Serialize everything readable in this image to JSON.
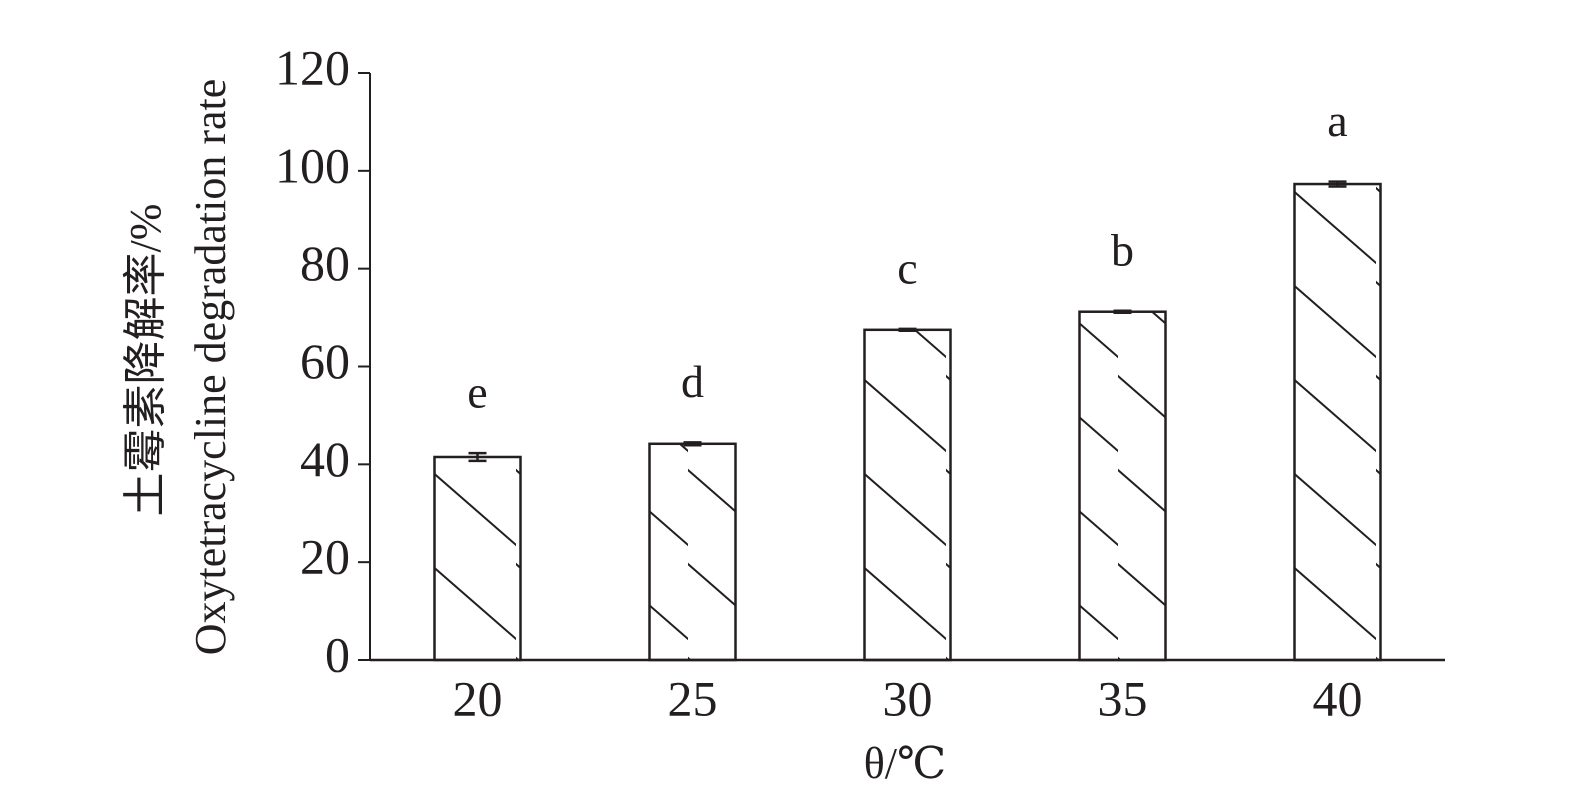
{
  "chart_data": {
    "type": "bar",
    "x_label": "θ/℃",
    "y_label": [
      "土霉素降解率/%",
      "Oxytetracycline degradation rate"
    ],
    "categories": [
      "20",
      "25",
      "30",
      "35",
      "40"
    ],
    "values": [
      41.5,
      44.2,
      67.5,
      71.2,
      97.3
    ],
    "errors": [
      0.8,
      0.3,
      0.2,
      0.2,
      0.5
    ],
    "annotations": [
      "e",
      "d",
      "c",
      "b",
      "a"
    ],
    "color": "#231f20",
    "hatch": "\\",
    "ylim": [
      0,
      120
    ],
    "yticks": [
      0,
      20,
      40,
      60,
      80,
      100,
      120
    ],
    "grid": false
  }
}
